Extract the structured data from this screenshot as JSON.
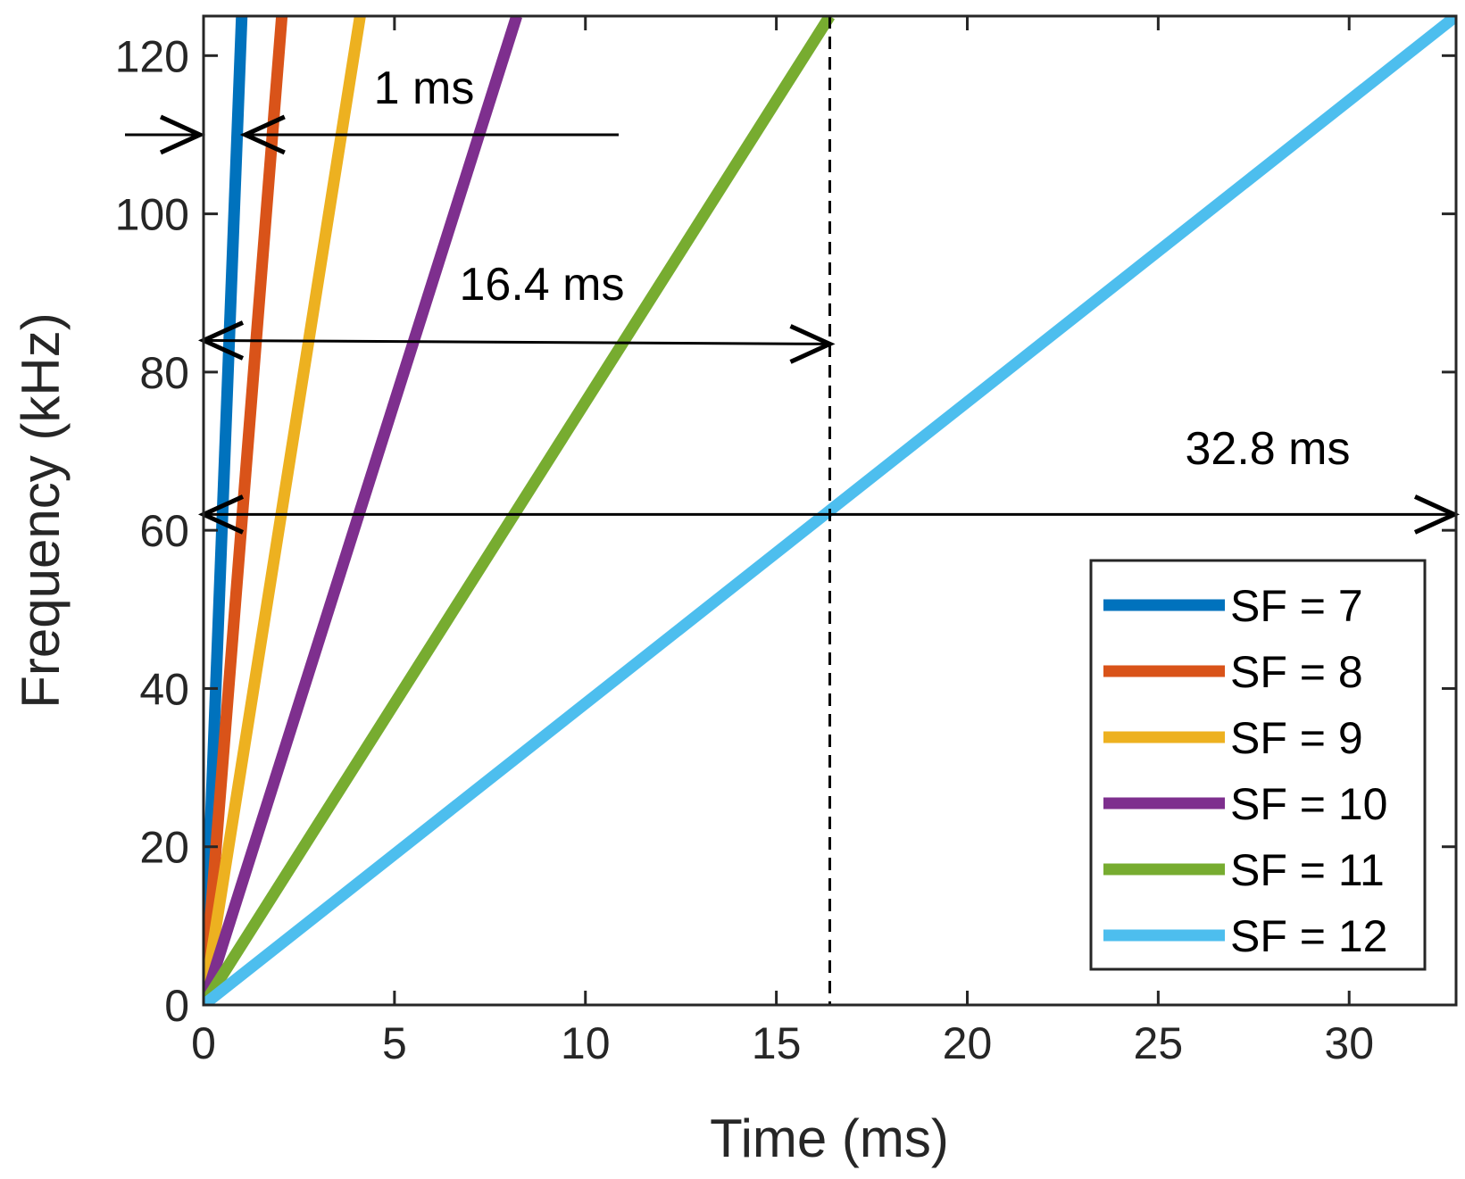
{
  "chart_data": {
    "type": "line",
    "title": "",
    "xlabel": "Time (ms)",
    "ylabel": "Frequency (kHz)",
    "xlim": [
      0,
      32.8
    ],
    "ylim": [
      0,
      125
    ],
    "xticks": [
      0,
      5,
      10,
      15,
      20,
      25,
      30
    ],
    "yticks": [
      0,
      20,
      40,
      60,
      80,
      100,
      120
    ],
    "x_tick_labels": [
      "0",
      "5",
      "10",
      "15",
      "20",
      "25",
      "30"
    ],
    "y_tick_labels": [
      "0",
      "20",
      "40",
      "60",
      "80",
      "100",
      "120"
    ],
    "grid": false,
    "legend_position": "bottom-right",
    "series": [
      {
        "name": "SF = 7",
        "label": "SF = 7",
        "color": "#0072BD",
        "x": [
          0,
          1.0
        ],
        "y": [
          0,
          125
        ]
      },
      {
        "name": "SF = 8",
        "label": "SF = 8",
        "color": "#D95319",
        "x": [
          0,
          2.05
        ],
        "y": [
          0,
          125
        ]
      },
      {
        "name": "SF = 9",
        "label": "SF = 9",
        "color": "#EDB120",
        "x": [
          0,
          4.1
        ],
        "y": [
          0,
          125
        ]
      },
      {
        "name": "SF = 10",
        "label": "SF = 10",
        "color": "#7E2F8E",
        "x": [
          0,
          8.2
        ],
        "y": [
          0,
          125
        ]
      },
      {
        "name": "SF = 11",
        "label": "SF = 11",
        "color": "#77AC30",
        "x": [
          0,
          16.4
        ],
        "y": [
          0,
          125
        ]
      },
      {
        "name": "SF = 12",
        "label": "SF = 12",
        "color": "#4DBEEE",
        "x": [
          0,
          32.8
        ],
        "y": [
          0,
          125
        ]
      }
    ],
    "annotations": [
      {
        "text": "1 ms",
        "arrow_y": 110,
        "from_x": 0,
        "to_x": 1.0
      },
      {
        "text": "16.4 ms",
        "arrow_y": 84,
        "from_x": 0,
        "to_x": 16.4
      },
      {
        "text": "32.8 ms",
        "arrow_y": 62,
        "from_x": 0,
        "to_x": 32.8
      }
    ],
    "reference_line": {
      "x": 16.4,
      "style": "dashed"
    }
  }
}
